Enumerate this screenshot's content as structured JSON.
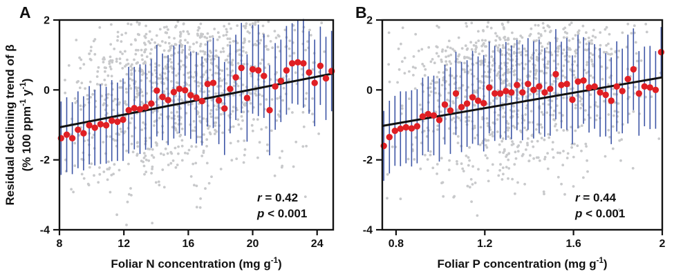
{
  "figure": {
    "background": "#ffffff",
    "colors": {
      "red": "#e01f24",
      "blue": "#3d55a6",
      "gray": "#c8c9cb",
      "line": "#111111",
      "axis": "#111111",
      "text": "#111111"
    },
    "ylabel_line1": "Residual declining trend of β",
    "ylabel_line2_segments": [
      {
        "t": "(% 100 ppm"
      },
      {
        "t": "-1",
        "sup": true
      },
      {
        "t": " y"
      },
      {
        "t": "-1",
        "sup": true
      },
      {
        "t": ")"
      }
    ],
    "ylabel_plain": "Residual declining trend of β (% 100 ppm⁻¹ y⁻¹)"
  },
  "chart_data": [
    {
      "type": "scatter",
      "panel_label": "A",
      "xlabel_plain": "Foliar N concentration (mg g⁻¹)",
      "xlabel_segments": [
        {
          "t": "Foliar N concentration (mg g"
        },
        {
          "t": "-1",
          "sup": true
        },
        {
          "t": ")"
        }
      ],
      "xlim": [
        8,
        25
      ],
      "ylim": [
        -4,
        2
      ],
      "grid": false,
      "legend": null,
      "xticks": [
        {
          "v": 8,
          "label": "8"
        },
        {
          "v": 12,
          "label": "12"
        },
        {
          "v": 16,
          "label": "16"
        },
        {
          "v": 20,
          "label": "20"
        },
        {
          "v": 24,
          "label": "24"
        }
      ],
      "yticks": [
        {
          "v": 2,
          "label": "2"
        },
        {
          "v": 0,
          "label": "0"
        },
        {
          "v": -2,
          "label": "-2"
        },
        {
          "v": -4,
          "label": "-4"
        }
      ],
      "r_symbol": "r",
      "r_text": " = 0.42",
      "p_symbol": "p",
      "p_text": " < 0.001",
      "trend": {
        "x1": 8,
        "y1": -1.07,
        "x2": 25,
        "y2": 0.47
      },
      "binned_means": {
        "x": [
          8.1,
          8.45,
          8.8,
          9.15,
          9.5,
          9.85,
          10.2,
          10.55,
          10.9,
          11.25,
          11.6,
          11.95,
          12.3,
          12.65,
          13.0,
          13.35,
          13.7,
          14.05,
          14.4,
          14.75,
          15.1,
          15.45,
          15.8,
          16.15,
          16.5,
          16.85,
          17.2,
          17.55,
          17.9,
          18.25,
          18.6,
          18.95,
          19.3,
          19.65,
          20.0,
          20.35,
          20.7,
          21.05,
          21.4,
          21.75,
          22.1,
          22.45,
          22.8,
          23.15,
          23.5,
          23.85,
          24.2,
          24.55,
          24.9
        ],
        "y": [
          -1.38,
          -1.28,
          -1.38,
          -1.14,
          -1.24,
          -1.01,
          -1.08,
          -0.98,
          -1.01,
          -0.88,
          -0.91,
          -0.85,
          -0.58,
          -0.52,
          -0.55,
          -0.49,
          -0.39,
          -0.02,
          -0.2,
          -0.29,
          -0.06,
          0.03,
          -0.01,
          -0.15,
          -0.22,
          -0.32,
          0.17,
          0.2,
          -0.3,
          -0.53,
          0.03,
          0.36,
          0.63,
          -0.23,
          0.59,
          0.56,
          0.4,
          -0.58,
          0.1,
          0.26,
          0.56,
          0.76,
          0.79,
          0.76,
          0.5,
          0.2,
          0.69,
          0.33,
          0.54
        ],
        "err": [
          1.05,
          1.07,
          1.03,
          1.1,
          1.06,
          1.12,
          1.08,
          1.14,
          1.1,
          1.16,
          1.12,
          1.18,
          1.24,
          1.18,
          1.28,
          1.22,
          1.27,
          1.31,
          1.24,
          1.29,
          1.33,
          1.27,
          1.3,
          1.25,
          1.31,
          1.27,
          1.22,
          1.29,
          1.25,
          1.33,
          1.27,
          1.22,
          1.29,
          1.25,
          1.27,
          1.31,
          1.2,
          1.29,
          1.24,
          1.18,
          1.27,
          1.15,
          1.21,
          1.27,
          1.18,
          1.24,
          1.12,
          1.19,
          1.15
        ]
      },
      "background_scatter": {
        "seed": 7,
        "n": 1000,
        "x_center_pow": 1.15,
        "sd_main": 1.15,
        "wide_frac": 0.08,
        "wide_sd": 1.9,
        "band_frac": 0.32,
        "band_offset": 1.5,
        "band_sd": 0.6
      },
      "series": [
        {
          "name": "individual residuals",
          "style": "gray dots"
        },
        {
          "name": "binned means ± SD",
          "style": "red dots with blue bars"
        },
        {
          "name": "linear fit",
          "style": "black line"
        }
      ]
    },
    {
      "type": "scatter",
      "panel_label": "B",
      "xlabel_plain": "Foliar P concentration (mg g⁻¹)",
      "xlabel_segments": [
        {
          "t": "Foliar P concentration (mg g"
        },
        {
          "t": "-1",
          "sup": true
        },
        {
          "t": ")"
        }
      ],
      "xlim": [
        0.738,
        2.0
      ],
      "ylim": [
        -4,
        2
      ],
      "grid": false,
      "legend": null,
      "xticks": [
        {
          "v": 0.8,
          "label": "0.8"
        },
        {
          "v": 1.2,
          "label": "1.2"
        },
        {
          "v": 1.6,
          "label": "1.6"
        },
        {
          "v": 2.0,
          "label": "2"
        }
      ],
      "yticks": [
        {
          "v": 2,
          "label": "2"
        },
        {
          "v": 0,
          "label": "0"
        },
        {
          "v": -2,
          "label": "-2"
        },
        {
          "v": -4,
          "label": "-4"
        }
      ],
      "r_symbol": "r",
      "r_text": " = 0.44",
      "p_symbol": "p",
      "p_text": " < 0.001",
      "trend": {
        "x1": 0.738,
        "y1": -1.03,
        "x2": 2.0,
        "y2": 0.36
      },
      "binned_means": {
        "x": [
          0.745,
          0.77,
          0.795,
          0.82,
          0.845,
          0.87,
          0.895,
          0.92,
          0.945,
          0.97,
          0.995,
          1.02,
          1.045,
          1.07,
          1.095,
          1.12,
          1.145,
          1.17,
          1.195,
          1.22,
          1.245,
          1.27,
          1.295,
          1.32,
          1.345,
          1.37,
          1.395,
          1.42,
          1.445,
          1.47,
          1.495,
          1.52,
          1.545,
          1.57,
          1.595,
          1.62,
          1.645,
          1.67,
          1.695,
          1.72,
          1.745,
          1.77,
          1.795,
          1.82,
          1.845,
          1.87,
          1.895,
          1.92,
          1.945,
          1.97,
          1.995
        ],
        "y": [
          -1.6,
          -1.35,
          -1.17,
          -1.11,
          -1.07,
          -1.1,
          -1.04,
          -0.76,
          -0.69,
          -0.73,
          -0.86,
          -0.42,
          -0.59,
          -0.1,
          -0.49,
          -0.39,
          -0.21,
          -0.31,
          -0.38,
          0.07,
          -0.1,
          -0.1,
          -0.03,
          -0.07,
          0.14,
          -0.07,
          0.17,
          0.0,
          0.1,
          -0.07,
          0.03,
          0.45,
          0.14,
          0.17,
          -0.28,
          0.24,
          0.27,
          0.07,
          0.1,
          -0.07,
          -0.14,
          -0.31,
          0.1,
          -0.03,
          0.31,
          0.59,
          -0.1,
          0.1,
          0.07,
          0.0,
          1.08
        ],
        "err": [
          1.0,
          1.04,
          1.0,
          1.07,
          1.03,
          1.09,
          1.06,
          1.11,
          1.08,
          1.14,
          1.19,
          1.14,
          1.24,
          1.19,
          1.29,
          1.24,
          1.33,
          1.27,
          1.38,
          1.31,
          1.36,
          1.29,
          1.4,
          1.34,
          1.29,
          1.37,
          1.31,
          1.39,
          1.34,
          1.27,
          1.34,
          1.29,
          1.24,
          1.31,
          1.27,
          1.34,
          1.24,
          1.29,
          1.21,
          1.27,
          1.19,
          1.24,
          1.29,
          1.21,
          1.27,
          1.17,
          1.21,
          1.14,
          1.19,
          1.11,
          0.72
        ]
      },
      "background_scatter": {
        "seed": 19,
        "n": 1000,
        "x_center_pow": 1.1,
        "sd_main": 1.15,
        "wide_frac": 0.08,
        "wide_sd": 1.9,
        "band_frac": 0.32,
        "band_offset": 1.35,
        "band_sd": 0.6
      },
      "series": [
        {
          "name": "individual residuals",
          "style": "gray dots"
        },
        {
          "name": "binned means ± SD",
          "style": "red dots with blue bars"
        },
        {
          "name": "linear fit",
          "style": "black line"
        }
      ]
    }
  ]
}
